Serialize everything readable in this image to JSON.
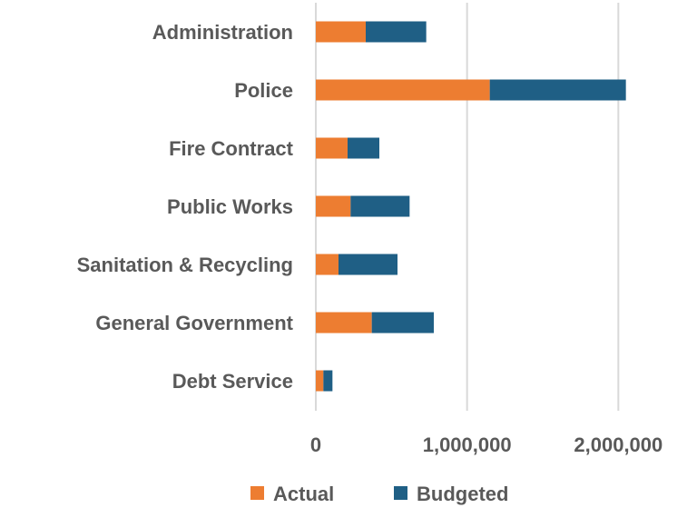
{
  "chart_data": {
    "type": "bar",
    "orientation": "horizontal",
    "stacked": true,
    "categories": [
      "Administration",
      "Police",
      "Fire Contract",
      "Public Works ",
      "Sanitation & Recycling",
      "General Government",
      "Debt Service"
    ],
    "series": [
      {
        "name": "Actual",
        "color": "#ED7D31",
        "values": [
          330000,
          1150000,
          210000,
          230000,
          150000,
          370000,
          50000
        ]
      },
      {
        "name": "Budgeted",
        "color": "#1F5F85",
        "values": [
          400000,
          900000,
          210000,
          390000,
          390000,
          410000,
          60000
        ]
      }
    ],
    "xlim": [
      0,
      2400000
    ],
    "xticks": [
      0,
      1000000,
      2000000
    ],
    "xtick_labels": [
      "0",
      "1,000,000",
      "2,000,000"
    ],
    "grid": "vertical",
    "legend": "bottom"
  },
  "colors": {
    "gridline": "#D9D9D9",
    "text": "#595959"
  }
}
